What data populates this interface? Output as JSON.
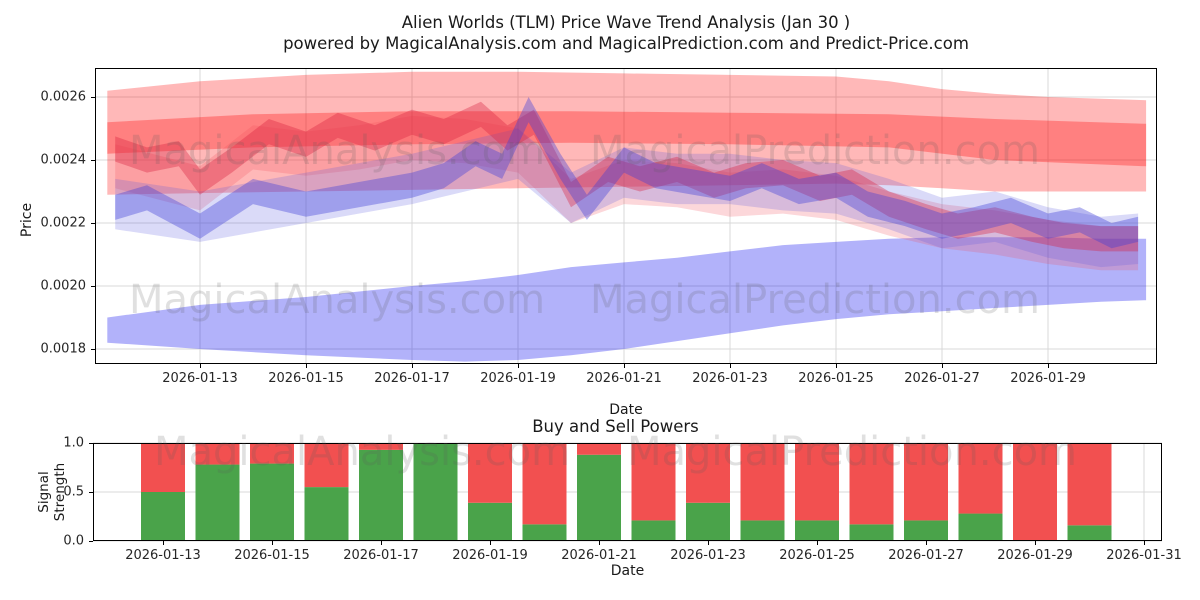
{
  "title": {
    "line1": "Alien Worlds (TLM) Price Wave Trend Analysis (Jan 30 )",
    "line2": "powered by MagicalAnalysis.com and MagicalPrediction.com and Predict-Price.com"
  },
  "watermark": {
    "analysis": "MagicalAnalysis.com",
    "prediction": "MagicalPrediction.com"
  },
  "colors": {
    "buy_green": "#4aa34a",
    "sell_red": "#f25050",
    "band_red": "#ff0000",
    "band_blue": "#0000ee",
    "grid": "#d8d8d8",
    "frame": "#000000"
  },
  "chart_data": [
    {
      "name": "main",
      "type": "area",
      "title": "Alien Worlds (TLM) Price Wave Trend Analysis (Jan 30 )",
      "xlabel": "Date",
      "ylabel": "Price",
      "grid": true,
      "ylim": [
        0.00175,
        0.00269
      ],
      "xlim_dates": [
        "2026-01-11",
        "2026-01-31"
      ],
      "y_ticks": [
        "0.0018",
        "0.0020",
        "0.0022",
        "0.0024",
        "0.0026"
      ],
      "y_tick_values": [
        0.0018,
        0.002,
        0.0022,
        0.0024,
        0.0026
      ],
      "x_ticks": [
        "2026-01-13",
        "2026-01-15",
        "2026-01-17",
        "2026-01-19",
        "2026-01-21",
        "2026-01-23",
        "2026-01-25",
        "2026-01-27",
        "2026-01-29"
      ],
      "x_tick_days": [
        13,
        15,
        17,
        19,
        21,
        23,
        25,
        27,
        29
      ],
      "bands": [
        {
          "name": "resistance-outer-band",
          "color": "#ff0000",
          "opacity": 0.28,
          "days": [
            11.25,
            13,
            15,
            17,
            19,
            21,
            23,
            25,
            26,
            27,
            28,
            29,
            30.85
          ],
          "top": [
            0.00262,
            0.00265,
            0.00267,
            0.00268,
            0.00268,
            0.002675,
            0.00267,
            0.002665,
            0.00265,
            0.002625,
            0.00261,
            0.0026,
            0.00259
          ],
          "bottom": [
            0.00229,
            0.002295,
            0.0023,
            0.002305,
            0.00231,
            0.002315,
            0.00232,
            0.002325,
            0.00232,
            0.00231,
            0.0023,
            0.0023,
            0.0023
          ]
        },
        {
          "name": "resistance-inner-band",
          "color": "#ff0000",
          "opacity": 0.3,
          "days": [
            11.25,
            14,
            17,
            20,
            23,
            26,
            28,
            30.85
          ],
          "top": [
            0.00252,
            0.002545,
            0.002555,
            0.002555,
            0.00255,
            0.002545,
            0.00253,
            0.002515
          ],
          "bottom": [
            0.00242,
            0.00244,
            0.00245,
            0.002455,
            0.00245,
            0.00244,
            0.0024,
            0.00238
          ]
        },
        {
          "name": "support-band",
          "color": "#0000ee",
          "opacity": 0.3,
          "days": [
            11.25,
            13,
            15,
            17,
            18,
            19,
            20,
            21,
            22,
            23,
            24,
            25,
            26,
            27,
            28,
            29,
            30,
            30.85
          ],
          "top": [
            0.0019,
            0.00194,
            0.001965,
            0.002,
            0.002015,
            0.002035,
            0.00206,
            0.002075,
            0.00209,
            0.00211,
            0.00213,
            0.00214,
            0.00215,
            0.002155,
            0.002155,
            0.002155,
            0.00215,
            0.00215
          ],
          "bottom": [
            0.00182,
            0.0018,
            0.00178,
            0.001765,
            0.00176,
            0.001765,
            0.00178,
            0.0018,
            0.001825,
            0.00185,
            0.001875,
            0.001895,
            0.00191,
            0.00192,
            0.00193,
            0.00194,
            0.00195,
            0.001955
          ]
        },
        {
          "name": "wave-red-wide",
          "color": "#f04858",
          "opacity": 0.22,
          "halfwidth": 7e-05,
          "days": [
            11.4,
            13,
            14,
            15,
            16,
            17,
            18,
            19,
            20,
            21,
            22,
            23,
            24,
            25,
            26,
            27,
            28,
            29,
            30,
            30.7
          ],
          "center": [
            0.00238,
            0.00231,
            0.00244,
            0.00242,
            0.00244,
            0.00247,
            0.00246,
            0.00243,
            0.00227,
            0.00233,
            0.00232,
            0.00229,
            0.0023,
            0.00228,
            0.00223,
            0.00219,
            0.00217,
            0.00214,
            0.00212,
            0.00212
          ]
        },
        {
          "name": "wave-blue-wide",
          "color": "#5858e0",
          "opacity": 0.22,
          "halfwidth": 8e-05,
          "days": [
            11.4,
            13,
            15,
            17,
            18,
            19,
            20,
            21,
            22,
            23,
            24,
            25,
            26,
            27,
            28,
            29,
            30,
            30.7
          ],
          "center": [
            0.00226,
            0.00222,
            0.00228,
            0.00234,
            0.00238,
            0.00242,
            0.00228,
            0.00236,
            0.00234,
            0.00234,
            0.00232,
            0.00231,
            0.00226,
            0.0022,
            0.00222,
            0.00217,
            0.00214,
            0.00215
          ]
        },
        {
          "name": "wave-red-narrow",
          "color": "#d81c3c",
          "opacity": 0.35,
          "halfwidth": 4e-05,
          "days": [
            11.4,
            12,
            12.6,
            13,
            13.6,
            14.3,
            15,
            15.6,
            16.3,
            17,
            17.6,
            18.3,
            18.8,
            19.3,
            20,
            20.7,
            21.3,
            22,
            22.7,
            23.3,
            24,
            24.7,
            25.3,
            26,
            26.7,
            27.3,
            28,
            28.7,
            29.3,
            30,
            30.7
          ],
          "center": [
            0.002435,
            0.0024,
            0.00242,
            0.00233,
            0.0024,
            0.00249,
            0.00245,
            0.00251,
            0.00247,
            0.00252,
            0.00249,
            0.002545,
            0.00247,
            0.00252,
            0.00229,
            0.00237,
            0.00234,
            0.00237,
            0.00232,
            0.00235,
            0.00236,
            0.00231,
            0.00233,
            0.00226,
            0.00222,
            0.00219,
            0.00221,
            0.00218,
            0.00216,
            0.00215,
            0.00215
          ]
        },
        {
          "name": "wave-blue-narrow",
          "color": "#4040d8",
          "opacity": 0.38,
          "halfwidth": 4e-05,
          "days": [
            11.4,
            12,
            13,
            14,
            15,
            16,
            17,
            17.6,
            18.2,
            18.7,
            19.2,
            19.8,
            20.3,
            21,
            21.6,
            22.3,
            23,
            23.6,
            24.3,
            25,
            25.6,
            26.3,
            27,
            27.6,
            28.3,
            29,
            29.6,
            30.2,
            30.7
          ],
          "center": [
            0.00225,
            0.00228,
            0.00219,
            0.0023,
            0.00226,
            0.00229,
            0.00232,
            0.00235,
            0.00242,
            0.00238,
            0.00256,
            0.00238,
            0.00225,
            0.0024,
            0.00235,
            0.00233,
            0.00231,
            0.00235,
            0.0023,
            0.00232,
            0.00226,
            0.00223,
            0.00219,
            0.00221,
            0.00224,
            0.00219,
            0.00221,
            0.00216,
            0.00218
          ]
        }
      ]
    },
    {
      "name": "signals",
      "type": "bar",
      "title": "Buy and Sell Powers",
      "xlabel": "Date",
      "ylabel": "Signal Strength",
      "grid": true,
      "ylim": [
        0,
        1.0
      ],
      "stacked": true,
      "y_ticks": [
        "0.0",
        "0.5",
        "1.0"
      ],
      "y_tick_values": [
        0.0,
        0.5,
        1.0
      ],
      "x_ticks": [
        "2026-01-13",
        "2026-01-15",
        "2026-01-17",
        "2026-01-19",
        "2026-01-21",
        "2026-01-23",
        "2026-01-25",
        "2026-01-27",
        "2026-01-29",
        "2026-01-31"
      ],
      "x_tick_days": [
        13,
        15,
        17,
        19,
        21,
        23,
        25,
        27,
        29,
        31
      ],
      "categories": [
        "2026-01-13",
        "2026-01-14",
        "2026-01-15",
        "2026-01-16",
        "2026-01-17",
        "2026-01-18",
        "2026-01-19",
        "2026-01-20",
        "2026-01-21",
        "2026-01-22",
        "2026-01-23",
        "2026-01-24",
        "2026-01-25",
        "2026-01-26",
        "2026-01-27",
        "2026-01-28",
        "2026-01-29",
        "2026-01-30"
      ],
      "days": [
        13,
        14,
        15,
        16,
        17,
        18,
        19,
        20,
        21,
        22,
        23,
        24,
        25,
        26,
        27,
        28,
        29,
        30
      ],
      "series": [
        {
          "name": "Buy Power",
          "color": "#4aa34a",
          "values": [
            0.5,
            0.78,
            0.79,
            0.55,
            0.93,
            1.0,
            0.39,
            0.17,
            0.88,
            0.21,
            0.39,
            0.21,
            0.21,
            0.17,
            0.21,
            0.28,
            0.0,
            0.16
          ]
        },
        {
          "name": "Sell Power",
          "color": "#f25050",
          "values": [
            0.5,
            0.22,
            0.21,
            0.45,
            0.07,
            0.0,
            0.61,
            0.83,
            0.12,
            0.79,
            0.61,
            0.79,
            0.79,
            0.83,
            0.79,
            0.72,
            1.0,
            0.84
          ]
        }
      ]
    }
  ]
}
